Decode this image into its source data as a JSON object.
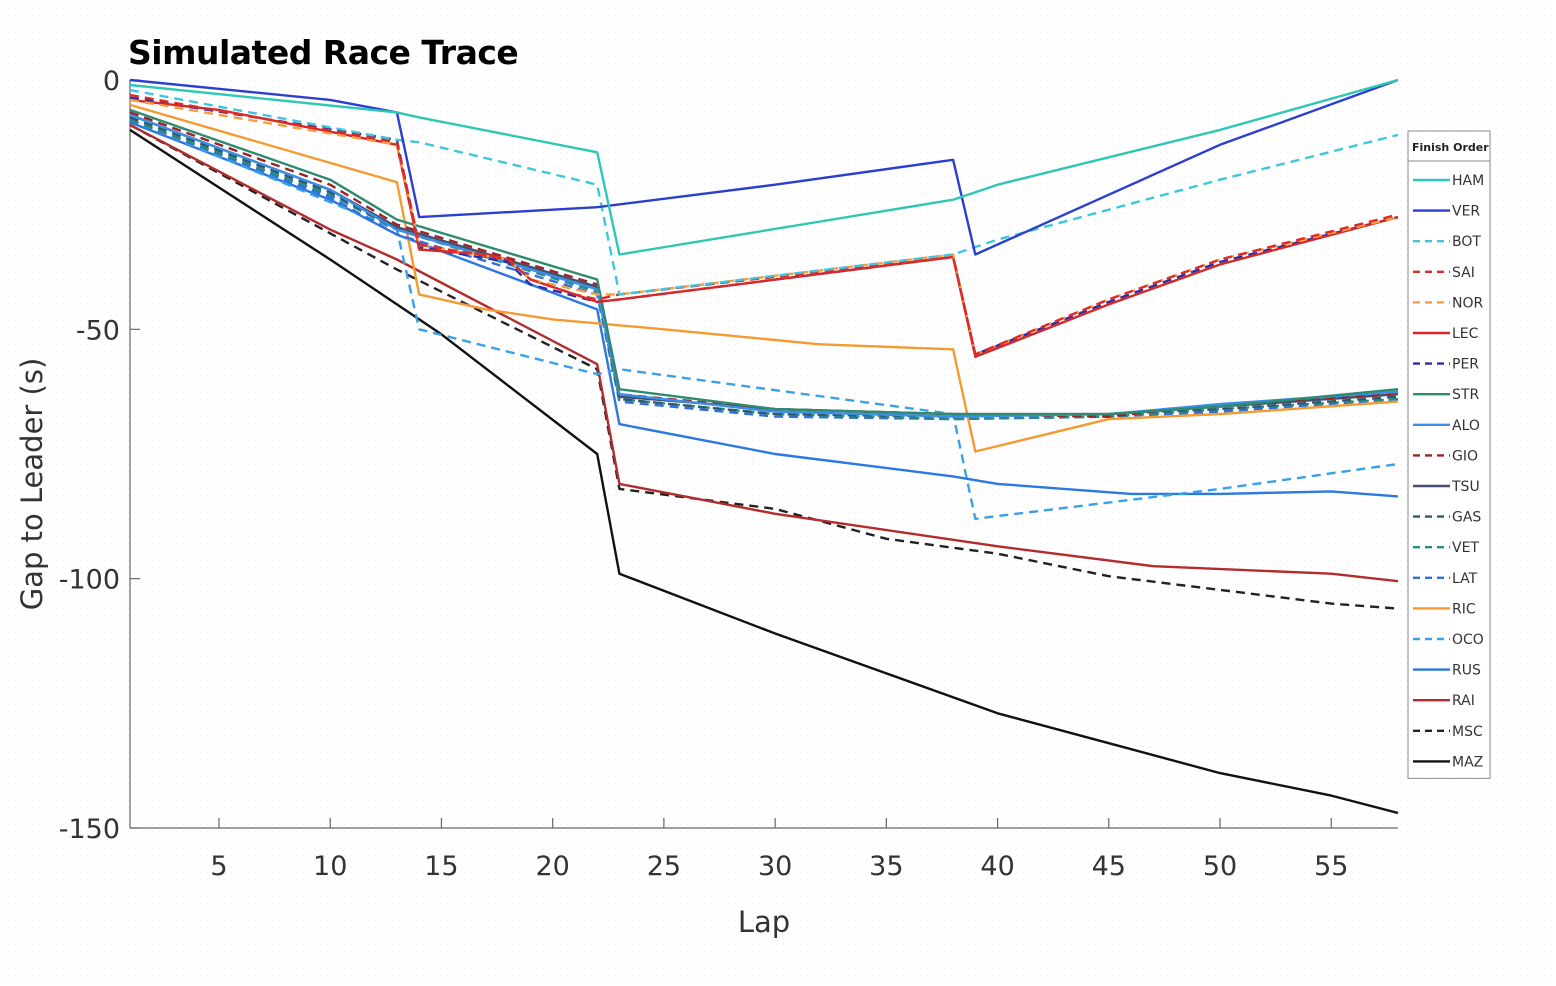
{
  "chart_data": {
    "type": "line",
    "title": "Simulated Race Trace",
    "xlabel": "Lap",
    "ylabel": "Gap to Leader (s)",
    "xlim": [
      1,
      58
    ],
    "ylim": [
      -150,
      0
    ],
    "xticks": [
      5,
      10,
      15,
      20,
      25,
      30,
      35,
      40,
      45,
      50,
      55
    ],
    "yticks": [
      0,
      -50,
      -100,
      -150
    ],
    "legend_title": "Finish Order",
    "legend_position": "right",
    "grid": false,
    "series": [
      {
        "name": "HAM",
        "color": "#2ec7b6",
        "dash": "solid",
        "points": [
          [
            1,
            -1
          ],
          [
            13,
            -6.5
          ],
          [
            14,
            -7.5
          ],
          [
            22,
            -14.5
          ],
          [
            23,
            -35
          ],
          [
            38,
            -24
          ],
          [
            40,
            -21
          ],
          [
            50,
            -10
          ],
          [
            58,
            0
          ]
        ]
      },
      {
        "name": "VER",
        "color": "#2a3fd0",
        "dash": "solid",
        "points": [
          [
            1,
            0
          ],
          [
            10,
            -4
          ],
          [
            13,
            -6.5
          ],
          [
            14,
            -27.5
          ],
          [
            22,
            -25.5
          ],
          [
            30,
            -21
          ],
          [
            38,
            -16
          ],
          [
            39,
            -35
          ],
          [
            45,
            -23
          ],
          [
            50,
            -13
          ],
          [
            58,
            0
          ]
        ]
      },
      {
        "name": "BOT",
        "color": "#3cc8dc",
        "dash": "dashed",
        "points": [
          [
            1,
            -2
          ],
          [
            13,
            -12
          ],
          [
            14,
            -12.5
          ],
          [
            22,
            -21
          ],
          [
            23,
            -43
          ],
          [
            38,
            -35
          ],
          [
            40,
            -32
          ],
          [
            50,
            -20
          ],
          [
            58,
            -11
          ]
        ]
      },
      {
        "name": "SAI",
        "color": "#e02a2a",
        "dash": "dashed",
        "points": [
          [
            1,
            -3
          ],
          [
            13,
            -12.5
          ],
          [
            14,
            -33
          ],
          [
            18,
            -36
          ],
          [
            19,
            -40
          ],
          [
            21,
            -43
          ],
          [
            22,
            -44
          ],
          [
            23,
            -43
          ],
          [
            38,
            -35.5
          ],
          [
            39,
            -55
          ],
          [
            45,
            -44
          ],
          [
            50,
            -36
          ],
          [
            58,
            -27
          ]
        ]
      },
      {
        "name": "NOR",
        "color": "#f5a040",
        "dash": "dashed",
        "points": [
          [
            1,
            -4
          ],
          [
            13,
            -13
          ],
          [
            14,
            -33
          ],
          [
            18,
            -36
          ],
          [
            19,
            -40
          ],
          [
            22,
            -43
          ],
          [
            23,
            -43
          ],
          [
            38,
            -35
          ],
          [
            39,
            -55
          ],
          [
            45,
            -44
          ],
          [
            50,
            -36
          ],
          [
            58,
            -27.5
          ]
        ]
      },
      {
        "name": "LEC",
        "color": "#d62828",
        "dash": "solid",
        "points": [
          [
            1,
            -4
          ],
          [
            5,
            -6
          ],
          [
            13,
            -13
          ],
          [
            14,
            -34
          ],
          [
            17,
            -35
          ],
          [
            18,
            -36
          ],
          [
            19,
            -40
          ],
          [
            22,
            -44.5
          ],
          [
            23,
            -44
          ],
          [
            38,
            -35.5
          ],
          [
            39,
            -55.5
          ],
          [
            45,
            -45
          ],
          [
            50,
            -37
          ],
          [
            58,
            -27.5
          ]
        ]
      },
      {
        "name": "PER",
        "color": "#2a2ea8",
        "dash": "dashed",
        "points": [
          [
            1,
            -3.5
          ],
          [
            13,
            -12
          ],
          [
            14,
            -33.5
          ],
          [
            18,
            -36.5
          ],
          [
            19,
            -41
          ],
          [
            22,
            -44.5
          ],
          [
            23,
            -44
          ],
          [
            38,
            -35.5
          ],
          [
            39,
            -55
          ],
          [
            45,
            -44.5
          ],
          [
            50,
            -36.5
          ],
          [
            58,
            -27.5
          ]
        ]
      },
      {
        "name": "STR",
        "color": "#2e8b70",
        "dash": "solid",
        "points": [
          [
            1,
            -6
          ],
          [
            10,
            -20
          ],
          [
            13,
            -28
          ],
          [
            22,
            -40
          ],
          [
            23,
            -62
          ],
          [
            30,
            -66
          ],
          [
            38,
            -67
          ],
          [
            45,
            -67
          ],
          [
            50,
            -65.5
          ],
          [
            58,
            -62
          ]
        ]
      },
      {
        "name": "ALO",
        "color": "#3a8ee6",
        "dash": "solid",
        "points": [
          [
            1,
            -7
          ],
          [
            10,
            -22
          ],
          [
            13,
            -30
          ],
          [
            22,
            -42
          ],
          [
            23,
            -63
          ],
          [
            30,
            -66.5
          ],
          [
            38,
            -67.5
          ],
          [
            45,
            -67
          ],
          [
            50,
            -65
          ],
          [
            58,
            -62.5
          ]
        ]
      },
      {
        "name": "GIO",
        "color": "#9b2323",
        "dash": "dashed",
        "points": [
          [
            1,
            -6.5
          ],
          [
            10,
            -21
          ],
          [
            13,
            -29
          ],
          [
            22,
            -41
          ],
          [
            23,
            -63
          ],
          [
            30,
            -66
          ],
          [
            38,
            -67
          ],
          [
            45,
            -67.5
          ],
          [
            50,
            -65
          ],
          [
            58,
            -63
          ]
        ]
      },
      {
        "name": "TSU",
        "color": "#405070",
        "dash": "solid",
        "points": [
          [
            1,
            -7
          ],
          [
            10,
            -22
          ],
          [
            13,
            -29.5
          ],
          [
            22,
            -41.5
          ],
          [
            23,
            -63.5
          ],
          [
            30,
            -66
          ],
          [
            38,
            -67
          ],
          [
            45,
            -67
          ],
          [
            50,
            -65.5
          ],
          [
            58,
            -63
          ]
        ]
      },
      {
        "name": "GAS",
        "color": "#2f5a6a",
        "dash": "dashed",
        "points": [
          [
            1,
            -7.5
          ],
          [
            10,
            -22.5
          ],
          [
            13,
            -30
          ],
          [
            22,
            -42
          ],
          [
            23,
            -64
          ],
          [
            30,
            -67
          ],
          [
            38,
            -67.5
          ],
          [
            45,
            -67
          ],
          [
            50,
            -66
          ],
          [
            58,
            -63.5
          ]
        ]
      },
      {
        "name": "VET",
        "color": "#2a8a8a",
        "dash": "dashed",
        "points": [
          [
            1,
            -8
          ],
          [
            10,
            -23
          ],
          [
            13,
            -30
          ],
          [
            22,
            -42.5
          ],
          [
            23,
            -64
          ],
          [
            30,
            -67
          ],
          [
            38,
            -68
          ],
          [
            45,
            -67.5
          ],
          [
            50,
            -66
          ],
          [
            58,
            -64
          ]
        ]
      },
      {
        "name": "LAT",
        "color": "#3070d8",
        "dash": "dashed",
        "points": [
          [
            1,
            -8
          ],
          [
            10,
            -23.5
          ],
          [
            13,
            -31
          ],
          [
            22,
            -43
          ],
          [
            23,
            -64.5
          ],
          [
            30,
            -67.5
          ],
          [
            38,
            -68
          ],
          [
            45,
            -67.5
          ],
          [
            50,
            -66.5
          ],
          [
            58,
            -64
          ]
        ]
      },
      {
        "name": "RIC",
        "color": "#f59a30",
        "dash": "solid",
        "points": [
          [
            1,
            -5
          ],
          [
            13,
            -20.5
          ],
          [
            14,
            -43
          ],
          [
            17,
            -46
          ],
          [
            20,
            -48
          ],
          [
            25,
            -50
          ],
          [
            32,
            -53
          ],
          [
            38,
            -54
          ],
          [
            39,
            -74.5
          ],
          [
            45,
            -68
          ],
          [
            50,
            -67
          ],
          [
            58,
            -64.5
          ]
        ]
      },
      {
        "name": "OCO",
        "color": "#3aa0e8",
        "dash": "dashed",
        "points": [
          [
            1,
            -8
          ],
          [
            13,
            -30
          ],
          [
            14,
            -50
          ],
          [
            22,
            -59
          ],
          [
            23,
            -58
          ],
          [
            38,
            -67
          ],
          [
            39,
            -88
          ],
          [
            50,
            -82
          ],
          [
            58,
            -77
          ]
        ]
      },
      {
        "name": "RUS",
        "color": "#2a78e0",
        "dash": "solid",
        "points": [
          [
            1,
            -8.5
          ],
          [
            10,
            -24
          ],
          [
            13,
            -31
          ],
          [
            22,
            -46
          ],
          [
            23,
            -69
          ],
          [
            30,
            -75
          ],
          [
            38,
            -79.5
          ],
          [
            40,
            -81
          ],
          [
            46,
            -83
          ],
          [
            50,
            -83
          ],
          [
            55,
            -82.5
          ],
          [
            58,
            -83.5
          ]
        ]
      },
      {
        "name": "RAI",
        "color": "#b32c2c",
        "dash": "solid",
        "points": [
          [
            1,
            -9
          ],
          [
            10,
            -30
          ],
          [
            13,
            -36
          ],
          [
            22,
            -57
          ],
          [
            23,
            -81
          ],
          [
            30,
            -87
          ],
          [
            40,
            -93.5
          ],
          [
            47,
            -97.5
          ],
          [
            55,
            -99
          ],
          [
            58,
            -100.5
          ]
        ]
      },
      {
        "name": "MSC",
        "color": "#222222",
        "dash": "dashed",
        "points": [
          [
            1,
            -9
          ],
          [
            13,
            -38
          ],
          [
            22,
            -58
          ],
          [
            23,
            -82
          ],
          [
            30,
            -86
          ],
          [
            35,
            -92
          ],
          [
            40,
            -95
          ],
          [
            45,
            -99.5
          ],
          [
            55,
            -105
          ],
          [
            58,
            -106
          ]
        ]
      },
      {
        "name": "MAZ",
        "color": "#111111",
        "dash": "solid",
        "points": [
          [
            1,
            -10
          ],
          [
            10,
            -36
          ],
          [
            15,
            -51
          ],
          [
            22,
            -75
          ],
          [
            23,
            -99
          ],
          [
            30,
            -111
          ],
          [
            35,
            -119
          ],
          [
            40,
            -127
          ],
          [
            45,
            -133
          ],
          [
            50,
            -139
          ],
          [
            55,
            -143.5
          ],
          [
            58,
            -147
          ]
        ]
      }
    ]
  }
}
